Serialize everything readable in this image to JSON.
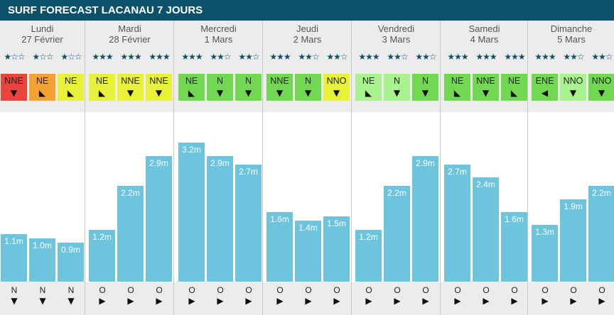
{
  "title": "SURF FORECAST LACANAU 7 JOURS",
  "colors": {
    "header": "#0b5169",
    "bar": "#6cc4dd",
    "wind_rating": {
      "1": "#e8453c",
      "2": "#f4a233",
      "3": "#e8f03a",
      "4": "#72d851",
      "5": "#a8f38f"
    }
  },
  "chart_data": {
    "type": "bar",
    "ylabel": "",
    "ylim": [
      0,
      3.4
    ],
    "unit": "m",
    "days": [
      {
        "name": "Lundi",
        "date": "27 Février",
        "slots": [
          {
            "stars": 1,
            "wind_dir": "NNE",
            "wind_rating": 1,
            "wind_arrow": "south",
            "height": 1.1,
            "label": "1.1m",
            "swell_dir": "N",
            "swell_arrow": "south"
          },
          {
            "stars": 1,
            "wind_dir": "NE",
            "wind_rating": 2,
            "wind_arrow": "southwest",
            "height": 1.0,
            "label": "1.0m",
            "swell_dir": "N",
            "swell_arrow": "south"
          },
          {
            "stars": 1,
            "wind_dir": "NE",
            "wind_rating": 3,
            "wind_arrow": "southwest",
            "height": 0.9,
            "label": "0.9m",
            "swell_dir": "N",
            "swell_arrow": "south"
          }
        ]
      },
      {
        "name": "Mardi",
        "date": "28 Février",
        "slots": [
          {
            "stars": 3,
            "wind_dir": "NE",
            "wind_rating": 3,
            "wind_arrow": "southwest",
            "height": 1.2,
            "label": "1.2m",
            "swell_dir": "O",
            "swell_arrow": "east"
          },
          {
            "stars": 3,
            "wind_dir": "NNE",
            "wind_rating": 3,
            "wind_arrow": "south",
            "height": 2.2,
            "label": "2.2m",
            "swell_dir": "O",
            "swell_arrow": "east"
          },
          {
            "stars": 3,
            "wind_dir": "NNE",
            "wind_rating": 3,
            "wind_arrow": "south",
            "height": 2.9,
            "label": "2.9m",
            "swell_dir": "O",
            "swell_arrow": "east"
          }
        ]
      },
      {
        "name": "Mercredi",
        "date": "1 Mars",
        "slots": [
          {
            "stars": 3,
            "wind_dir": "NE",
            "wind_rating": 4,
            "wind_arrow": "southwest",
            "height": 3.2,
            "label": "3.2m",
            "swell_dir": "O",
            "swell_arrow": "east"
          },
          {
            "stars": 2,
            "wind_dir": "N",
            "wind_rating": 4,
            "wind_arrow": "south",
            "height": 2.9,
            "label": "2.9m",
            "swell_dir": "O",
            "swell_arrow": "east"
          },
          {
            "stars": 2,
            "wind_dir": "N",
            "wind_rating": 4,
            "wind_arrow": "south",
            "height": 2.7,
            "label": "2.7m",
            "swell_dir": "O",
            "swell_arrow": "east"
          }
        ]
      },
      {
        "name": "Jeudi",
        "date": "2 Mars",
        "slots": [
          {
            "stars": 3,
            "wind_dir": "NNE",
            "wind_rating": 4,
            "wind_arrow": "south",
            "height": 1.6,
            "label": "1.6m",
            "swell_dir": "O",
            "swell_arrow": "east"
          },
          {
            "stars": 2,
            "wind_dir": "N",
            "wind_rating": 4,
            "wind_arrow": "south",
            "height": 1.4,
            "label": "1.4m",
            "swell_dir": "O",
            "swell_arrow": "east"
          },
          {
            "stars": 2,
            "wind_dir": "NNO",
            "wind_rating": 3,
            "wind_arrow": "south",
            "height": 1.5,
            "label": "1.5m",
            "swell_dir": "O",
            "swell_arrow": "east"
          }
        ]
      },
      {
        "name": "Vendredi",
        "date": "3 Mars",
        "slots": [
          {
            "stars": 3,
            "wind_dir": "NE",
            "wind_rating": 5,
            "wind_arrow": "southwest",
            "height": 1.2,
            "label": "1.2m",
            "swell_dir": "O",
            "swell_arrow": "east"
          },
          {
            "stars": 2,
            "wind_dir": "N",
            "wind_rating": 5,
            "wind_arrow": "south",
            "height": 2.2,
            "label": "2.2m",
            "swell_dir": "O",
            "swell_arrow": "east"
          },
          {
            "stars": 2,
            "wind_dir": "N",
            "wind_rating": 4,
            "wind_arrow": "south",
            "height": 2.9,
            "label": "2.9m",
            "swell_dir": "O",
            "swell_arrow": "east"
          }
        ]
      },
      {
        "name": "Samedi",
        "date": "4 Mars",
        "slots": [
          {
            "stars": 3,
            "wind_dir": "NE",
            "wind_rating": 4,
            "wind_arrow": "southwest",
            "height": 2.7,
            "label": "2.7m",
            "swell_dir": "O",
            "swell_arrow": "east"
          },
          {
            "stars": 3,
            "wind_dir": "NNE",
            "wind_rating": 4,
            "wind_arrow": "south",
            "height": 2.4,
            "label": "2.4m",
            "swell_dir": "O",
            "swell_arrow": "east"
          },
          {
            "stars": 3,
            "wind_dir": "NE",
            "wind_rating": 4,
            "wind_arrow": "southwest",
            "height": 1.6,
            "label": "1.6m",
            "swell_dir": "O",
            "swell_arrow": "east"
          }
        ]
      },
      {
        "name": "Dimanche",
        "date": "5 Mars",
        "slots": [
          {
            "stars": 3,
            "wind_dir": "ENE",
            "wind_rating": 4,
            "wind_arrow": "west",
            "height": 1.3,
            "label": "1.3m",
            "swell_dir": "O",
            "swell_arrow": "east"
          },
          {
            "stars": 2,
            "wind_dir": "NNO",
            "wind_rating": 5,
            "wind_arrow": "south",
            "height": 1.9,
            "label": "1.9m",
            "swell_dir": "O",
            "swell_arrow": "east"
          },
          {
            "stars": 2,
            "wind_dir": "NNO",
            "wind_rating": 4,
            "wind_arrow": "south",
            "height": 2.2,
            "label": "2.2m",
            "swell_dir": "O",
            "swell_arrow": "east"
          }
        ]
      }
    ]
  }
}
